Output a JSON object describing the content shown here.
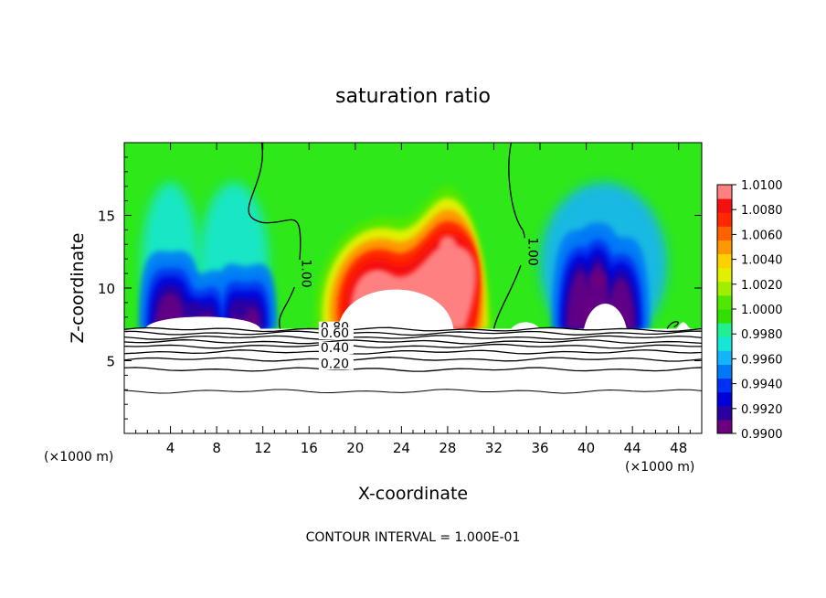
{
  "chart_data": {
    "type": "heatmap",
    "title": "saturation ratio",
    "xlabel": "X-coordinate",
    "ylabel": "Z-coordinate",
    "x_unit_left": "(×1000 m)",
    "x_unit_right": "(×1000 m)",
    "footer": "CONTOUR INTERVAL = 1.000E-01",
    "xlim": [
      0,
      50
    ],
    "ylim": [
      0,
      20
    ],
    "x_ticks": [
      4,
      8,
      12,
      16,
      20,
      24,
      28,
      32,
      36,
      40,
      44,
      48
    ],
    "y_ticks": [
      5,
      10,
      15
    ],
    "colorbar": {
      "min": 0.99,
      "max": 1.01,
      "labels": [
        "1.0100",
        "1.0080",
        "1.0060",
        "1.0040",
        "1.0020",
        "1.0000",
        "0.9980",
        "0.9960",
        "0.9940",
        "0.9920",
        "0.9900"
      ],
      "colors": [
        "#6a0080",
        "#2a00a0",
        "#0000d8",
        "#0030f0",
        "#0078f8",
        "#14b4f8",
        "#14e6d8",
        "#20f090",
        "#30e000",
        "#50e800",
        "#a0ee00",
        "#e0f000",
        "#ffd000",
        "#ff9800",
        "#ff6000",
        "#ff2800",
        "#f41010",
        "#ff8080"
      ]
    },
    "contour_lines": [
      {
        "level": 1.0,
        "label": "1.00"
      },
      {
        "level": 0.8,
        "label": "0.80"
      },
      {
        "level": 0.6,
        "label": "0.60"
      },
      {
        "level": 0.4,
        "label": "0.40"
      },
      {
        "level": 0.2,
        "label": "0.20"
      }
    ],
    "field_features": [
      {
        "x": 6,
        "z": 8.5,
        "value": 0.992,
        "kind": "subsaturated column"
      },
      {
        "x": 10,
        "z": 8.5,
        "value": 0.992,
        "kind": "subsaturated column"
      },
      {
        "x": 22,
        "z": 10.5,
        "value": 1.009,
        "kind": "supersaturated plume"
      },
      {
        "x": 28,
        "z": 13,
        "value": 1.009,
        "kind": "supersaturated plume"
      },
      {
        "x": 41,
        "z": 10.5,
        "value": 0.991,
        "kind": "subsaturated column"
      }
    ],
    "cloud_base_z": 7.2
  }
}
